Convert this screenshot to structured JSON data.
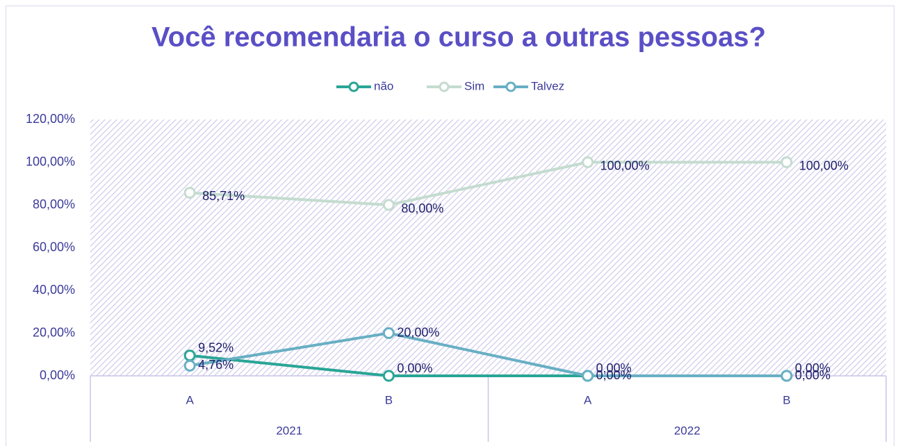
{
  "chart_data": {
    "type": "line",
    "title": "Você recomendaria o curso a outras pessoas?",
    "categories": [
      "A",
      "B",
      "A",
      "B"
    ],
    "category_groups": [
      "2021",
      "2022"
    ],
    "series": [
      {
        "name": "não",
        "color": "#2aa596",
        "values": [
          9.52,
          0,
          0,
          0
        ],
        "value_labels": [
          "9,52%",
          "0,00%",
          "0,00%",
          "0,00%"
        ]
      },
      {
        "name": "Sim",
        "color": "#c4dccf",
        "values": [
          85.71,
          80,
          100,
          100
        ],
        "value_labels": [
          "85,71%",
          "80,00%",
          "100,00%",
          "100,00%"
        ]
      },
      {
        "name": "Talvez",
        "color": "#68afc4",
        "values": [
          4.76,
          20,
          0,
          0
        ],
        "value_labels": [
          "4,76%",
          "20,00%",
          "0,00%",
          "0,00%"
        ]
      }
    ],
    "ylim": [
      0,
      120
    ],
    "yticks": [
      {
        "value": 0,
        "label": "0,00%"
      },
      {
        "value": 20,
        "label": "20,00%"
      },
      {
        "value": 40,
        "label": "40,00%"
      },
      {
        "value": 60,
        "label": "60,00%"
      },
      {
        "value": 80,
        "label": "80,00%"
      },
      {
        "value": 100,
        "label": "100,00%"
      },
      {
        "value": 120,
        "label": "120,00%"
      }
    ],
    "legend": "top"
  }
}
